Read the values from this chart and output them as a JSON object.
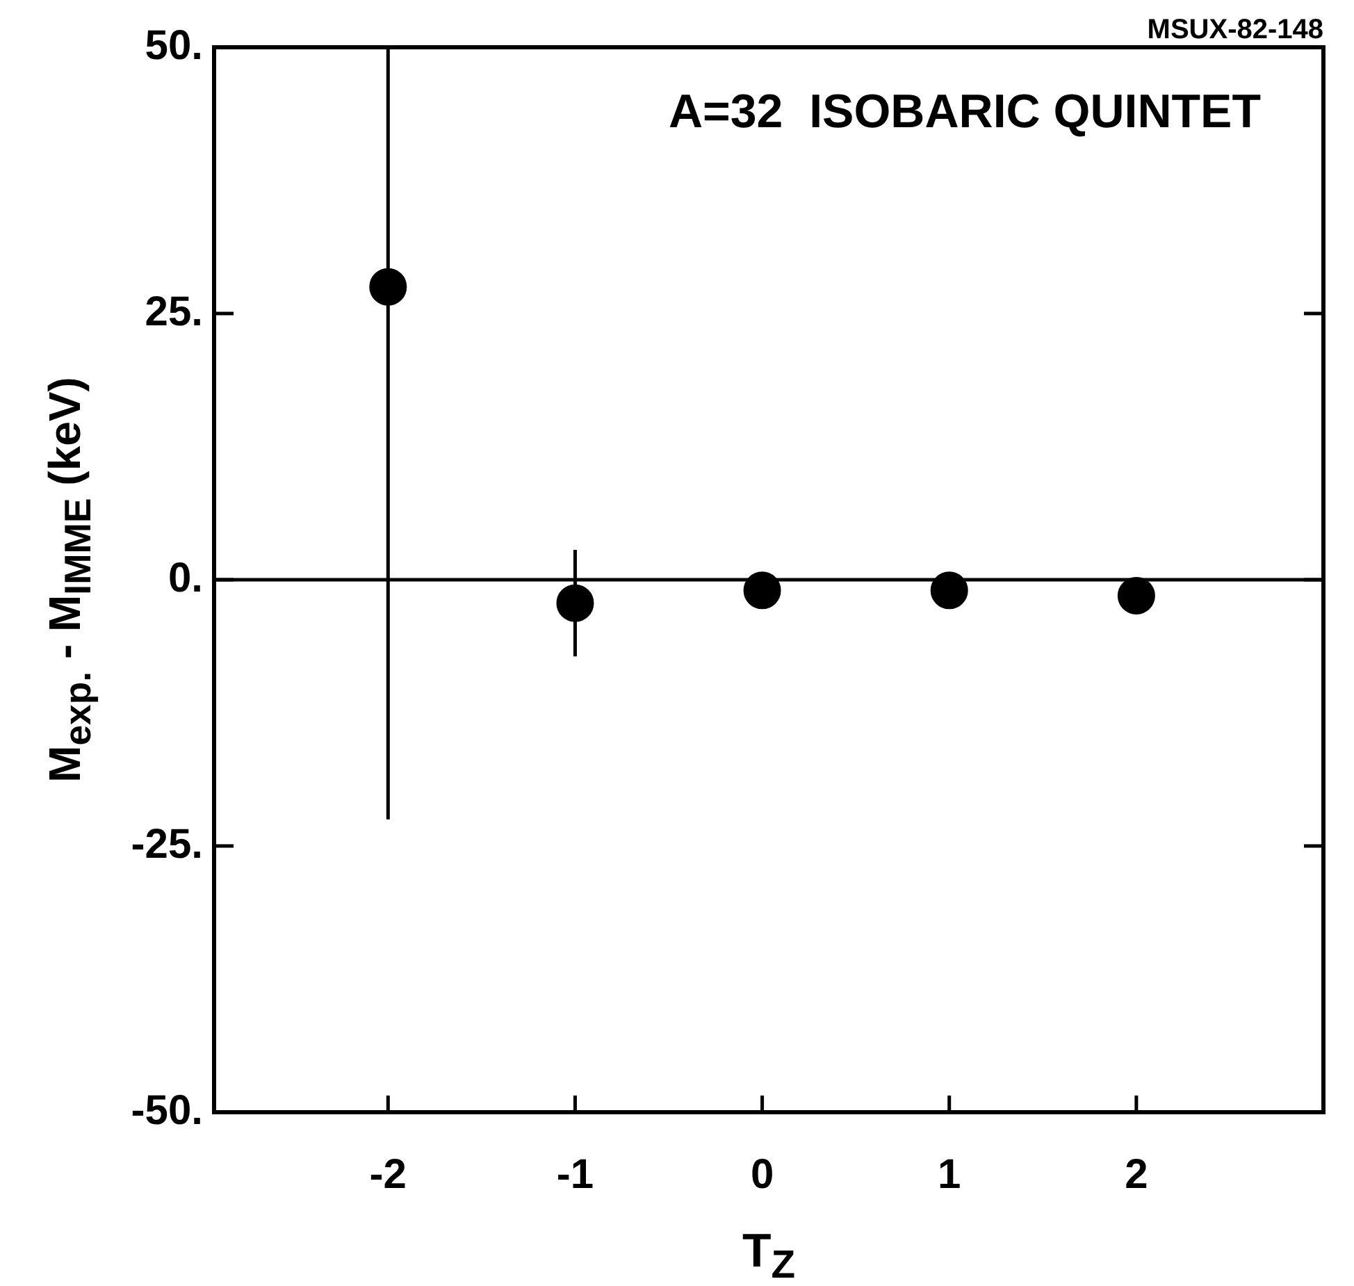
{
  "chart_data": {
    "type": "scatter",
    "title": "A=32  ISOBARIC QUINTET",
    "xlabel": "T$_{Z}$",
    "ylabel": "M$_{exp.}$ - M$_{IMME}$ (keV)",
    "annotations": [
      "MSUX-82-148"
    ],
    "x": [
      -2,
      -1,
      0,
      1,
      2
    ],
    "series": [
      {
        "color": "#000000",
        "values": [
          27.5,
          -2.2,
          -1.0,
          -1.0,
          -1.5
        ],
        "errors": [
          [
            -22.5,
            50
          ],
          5,
          null,
          null,
          null
        ]
      }
    ],
    "xlim": [
      -2.93,
      3
    ],
    "xticks": [
      -2,
      -1,
      0,
      1,
      2
    ],
    "ylim": [
      -50,
      50
    ],
    "yticks": [
      {
        "value": -50,
        "label": "-50."
      },
      {
        "value": -25,
        "label": "-25."
      },
      {
        "value": 0,
        "label": "0."
      },
      {
        "value": 25,
        "label": "25."
      },
      {
        "value": 50,
        "label": "50."
      }
    ],
    "ref_lines": [
      {
        "axis": "y",
        "value": 0,
        "color": "#000000"
      }
    ],
    "marker": "circle",
    "grid": false,
    "legend": false
  }
}
